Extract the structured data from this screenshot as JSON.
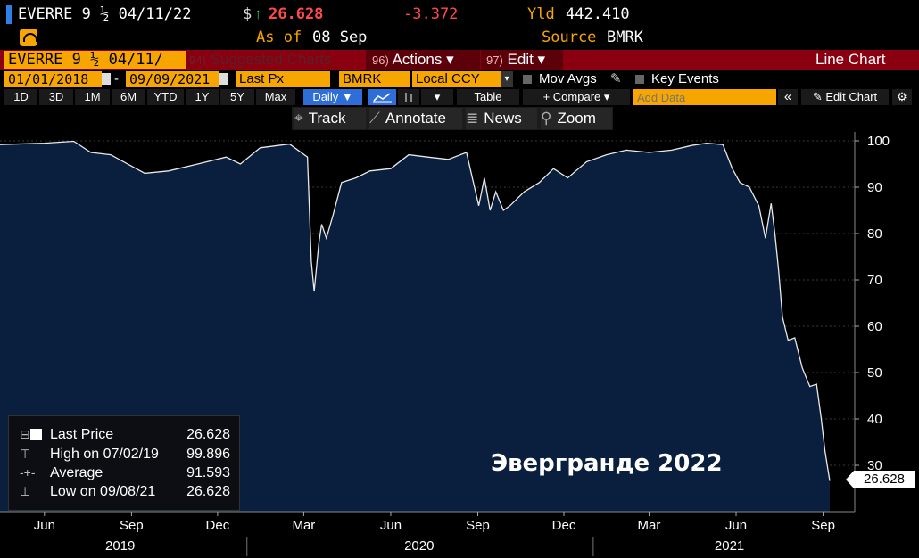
{
  "header": {
    "ticker": "EVERRE 9 ½ 04/11/22",
    "price_prefix": "$",
    "arrow": "↑",
    "price": "26.628",
    "change": "-3.372",
    "yld_label": "Yld",
    "yld_value": "442.410",
    "as_of_label": "As of",
    "as_of_value": "08 Sep",
    "source_label": "Source",
    "source_value": "BMRK"
  },
  "toolbar1": {
    "security": "EVERRE 9 ½ 04/11/",
    "suggested_num": "94)",
    "suggested": "Suggested Charts",
    "actions_num": "96)",
    "actions": "Actions ▾",
    "edit_num": "97)",
    "edit": "Edit ▾",
    "title": "Line Chart"
  },
  "toolbar2": {
    "start_date": "01/01/2018",
    "dash": "-",
    "end_date": "09/09/2021",
    "field": "Last Px",
    "source": "BMRK",
    "currency": "Local CCY",
    "mov_avgs": "Mov Avgs",
    "key_events": "Key Events"
  },
  "toolbar3": {
    "periods": [
      "1D",
      "3D",
      "1M",
      "6M",
      "YTD",
      "1Y",
      "5Y",
      "Max"
    ],
    "frequency": "Daily ▼",
    "table": "Table",
    "compare": "+ Compare ▾",
    "add_data_placeholder": "Add Data",
    "collapse": "«",
    "edit_chart": "Edit Chart"
  },
  "tools": {
    "track": "Track",
    "annotate": "Annotate",
    "news": "News",
    "zoom": "Zoom"
  },
  "legend": {
    "last_price_label": "Last Price",
    "last_price_value": "26.628",
    "high_label": "High on 07/02/19",
    "high_value": "99.896",
    "average_label": "Average",
    "average_value": "91.593",
    "low_label": "Low on 09/08/21",
    "low_value": "26.628"
  },
  "annotation": "Эвергранде 2022",
  "last_tag": "26.628",
  "colors": {
    "accent": "#f7a500",
    "bar_red": "#8b0010",
    "area_fill": "#0a1f3d",
    "line": "#e8e8e8",
    "down": "#ff4a4a",
    "up": "#26d07c"
  },
  "chart_data": {
    "type": "area",
    "ylim": [
      20,
      105
    ],
    "yticks": [
      30,
      40,
      50,
      60,
      70,
      80,
      90,
      100
    ],
    "xticks": [
      "Jun",
      "Sep",
      "Dec",
      "Mar",
      "Jun",
      "Sep",
      "Dec",
      "Mar",
      "Jun",
      "Sep"
    ],
    "years": [
      "2019",
      "2020",
      "2021"
    ],
    "grid": true,
    "x": [
      "2019-04-15",
      "2019-06-01",
      "2019-07-02",
      "2019-07-20",
      "2019-08-10",
      "2019-09-15",
      "2019-10-10",
      "2019-11-10",
      "2019-12-10",
      "2019-12-25",
      "2020-01-15",
      "2020-02-15",
      "2020-03-05",
      "2020-03-09",
      "2020-03-12",
      "2020-03-17",
      "2020-03-20",
      "2020-03-25",
      "2020-04-01",
      "2020-04-10",
      "2020-04-25",
      "2020-05-10",
      "2020-06-01",
      "2020-06-20",
      "2020-07-10",
      "2020-08-01",
      "2020-08-20",
      "2020-09-02",
      "2020-09-08",
      "2020-09-14",
      "2020-09-20",
      "2020-09-28",
      "2020-10-05",
      "2020-10-20",
      "2020-11-05",
      "2020-11-20",
      "2020-12-05",
      "2020-12-25",
      "2021-01-15",
      "2021-02-05",
      "2021-03-01",
      "2021-03-25",
      "2021-04-15",
      "2021-05-01",
      "2021-05-18",
      "2021-05-28",
      "2021-06-05",
      "2021-06-15",
      "2021-06-25",
      "2021-07-02",
      "2021-07-08",
      "2021-07-12",
      "2021-07-16",
      "2021-07-20",
      "2021-07-26",
      "2021-08-02",
      "2021-08-10",
      "2021-08-18",
      "2021-08-25",
      "2021-08-30",
      "2021-09-03",
      "2021-09-08"
    ],
    "y": [
      99.2,
      99.5,
      99.9,
      97.5,
      97.0,
      93.0,
      93.5,
      95.0,
      96.5,
      95.0,
      98.5,
      99.3,
      96.5,
      74.0,
      67.5,
      78.0,
      82.0,
      79.0,
      84.0,
      91.0,
      92.0,
      93.5,
      94.0,
      97.0,
      96.5,
      96.0,
      97.5,
      86.0,
      92.0,
      85.0,
      89.0,
      85.0,
      86.0,
      89.0,
      91.0,
      94.0,
      92.0,
      95.5,
      97.0,
      98.0,
      97.5,
      98.0,
      99.0,
      99.5,
      99.2,
      94.0,
      91.0,
      90.0,
      86.0,
      79.0,
      86.5,
      80.0,
      72.0,
      62.0,
      57.0,
      57.5,
      51.0,
      47.0,
      47.5,
      40.0,
      33.0,
      26.628
    ]
  }
}
